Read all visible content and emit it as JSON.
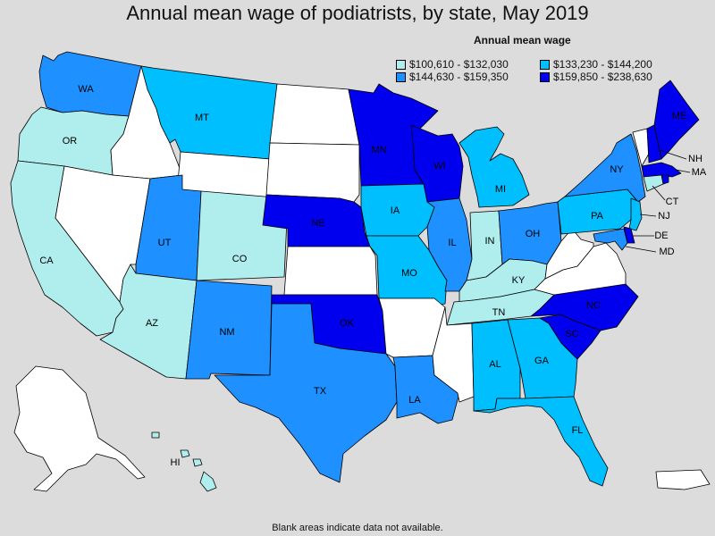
{
  "title": "Annual mean wage of podiatrists, by state, May 2019",
  "legend": {
    "title": "Annual mean wage",
    "items": [
      {
        "label": "$100,610 - $132,030",
        "color": "#b0eeee"
      },
      {
        "label": "$133,230 - $144,200",
        "color": "#00bfff"
      },
      {
        "label": "$144,630 - $159,350",
        "color": "#1e90ff"
      },
      {
        "label": "$159,850 - $238,630",
        "color": "#0000ee"
      }
    ]
  },
  "footnote": "Blank areas indicate data not available.",
  "colors": {
    "no_data": "#ffffff",
    "background": "#dcdcdc"
  },
  "states": {
    "WA": 3,
    "OR": 1,
    "CA": 1,
    "ID": null,
    "NV": null,
    "MT": 2,
    "WY": null,
    "UT": 3,
    "AZ": 1,
    "CO": 1,
    "NM": 3,
    "ND": null,
    "SD": null,
    "NE": 4,
    "KS": null,
    "OK": 4,
    "TX": 3,
    "MN": 4,
    "IA": 2,
    "MO": 2,
    "AR": null,
    "LA": 3,
    "WI": 4,
    "IL": 3,
    "MI": 2,
    "IN": 1,
    "OH": 3,
    "KY": 1,
    "TN": 1,
    "MS": null,
    "AL": 2,
    "GA": 2,
    "FL": 2,
    "SC": 4,
    "NC": 4,
    "VA": null,
    "WV": null,
    "PA": 2,
    "NY": 3,
    "VT": null,
    "NH": 4,
    "ME": 4,
    "MA": 4,
    "CT": 1,
    "RI": 4,
    "NJ": 2,
    "DE": 4,
    "MD": 3,
    "DC": null,
    "AK": null,
    "HI": 1,
    "PR": null
  },
  "labels": {
    "WA": "WA",
    "OR": "OR",
    "CA": "CA",
    "MT": "MT",
    "UT": "UT",
    "AZ": "AZ",
    "CO": "CO",
    "NM": "NM",
    "NE": "NE",
    "OK": "OK",
    "TX": "TX",
    "MN": "MN",
    "IA": "IA",
    "MO": "MO",
    "LA": "LA",
    "WI": "WI",
    "IL": "IL",
    "MI": "MI",
    "IN": "IN",
    "OH": "OH",
    "KY": "KY",
    "TN": "TN",
    "AL": "AL",
    "GA": "GA",
    "FL": "FL",
    "SC": "SC",
    "NC": "NC",
    "PA": "PA",
    "NY": "NY",
    "NH": "NH",
    "ME": "ME",
    "MA": "MA",
    "CT": "CT",
    "NJ": "NJ",
    "DE": "DE",
    "MD": "MD",
    "HI": "HI"
  }
}
